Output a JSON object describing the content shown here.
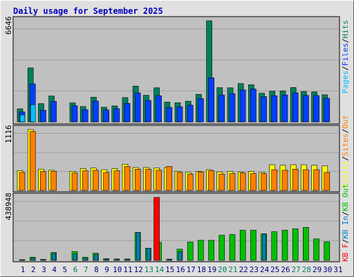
{
  "title": "Daily usage for September 2025",
  "colors": {
    "hits": "#00805c",
    "files": "#0040ff",
    "pages": "#00c0ff",
    "visits": "#ffff00",
    "sites": "#ff8000",
    "kb_out": "#00c000",
    "kb_in": "#0080c0",
    "kb_f": "#ff0000",
    "weekend_label": "#00805c",
    "weekday_label": "#000080",
    "panel_bg": "#c0c0c0",
    "frame_bg": "#e0e0e0",
    "title": "#0000c0"
  },
  "chart_data": [
    {
      "type": "bar",
      "panel": "top",
      "y_tick_label": "6646",
      "ylim": [
        0,
        6646
      ],
      "legend": [
        "Pages",
        "Files",
        "Hits"
      ],
      "categories": [
        "1",
        "2",
        "3",
        "4",
        "5",
        "6",
        "7",
        "8",
        "9",
        "10",
        "11",
        "12",
        "13",
        "14",
        "15",
        "16",
        "17",
        "18",
        "19",
        "20",
        "21",
        "22",
        "23",
        "24",
        "25",
        "26",
        "27",
        "28",
        "29",
        "30",
        "31"
      ],
      "weekend_days": [
        "6",
        "7",
        "13",
        "14",
        "20",
        "21",
        "27",
        "28"
      ],
      "series": [
        {
          "name": "Hits",
          "values": [
            860,
            3550,
            1200,
            1700,
            0,
            1250,
            1010,
            1620,
            960,
            1050,
            1600,
            2350,
            1750,
            2240,
            1300,
            1260,
            1360,
            1810,
            6646,
            2250,
            2240,
            2520,
            2440,
            1880,
            2020,
            2040,
            2260,
            2000,
            1970,
            1780,
            0
          ]
        },
        {
          "name": "Files",
          "values": [
            650,
            2500,
            760,
            1350,
            0,
            1060,
            800,
            1370,
            780,
            870,
            1220,
            1910,
            1410,
            1720,
            950,
            1000,
            1100,
            1530,
            2900,
            1770,
            1860,
            2100,
            2160,
            1660,
            1720,
            1770,
            1910,
            1740,
            1730,
            1550,
            0
          ]
        },
        {
          "name": "Pages",
          "values": [
            460,
            1130,
            0,
            0,
            0,
            0,
            0,
            0,
            0,
            0,
            0,
            0,
            0,
            0,
            0,
            0,
            0,
            0,
            0,
            0,
            0,
            0,
            0,
            0,
            0,
            0,
            0,
            0,
            0,
            0,
            0
          ]
        }
      ]
    },
    {
      "type": "bar",
      "panel": "middle",
      "y_tick_label": "1116",
      "ylim": [
        0,
        1116
      ],
      "legend": [
        "Visits",
        "Sites",
        "Out"
      ],
      "categories": [
        "1",
        "2",
        "3",
        "4",
        "5",
        "6",
        "7",
        "8",
        "9",
        "10",
        "11",
        "12",
        "13",
        "14",
        "15",
        "16",
        "17",
        "18",
        "19",
        "20",
        "21",
        "22",
        "23",
        "24",
        "25",
        "26",
        "27",
        "28",
        "29",
        "30",
        "31"
      ],
      "series": [
        {
          "name": "Visits",
          "values": [
            360,
            1116,
            390,
            370,
            0,
            350,
            400,
            410,
            380,
            400,
            480,
            420,
            420,
            410,
            420,
            350,
            330,
            350,
            380,
            340,
            350,
            340,
            350,
            330,
            470,
            460,
            470,
            470,
            460,
            450,
            0
          ]
        },
        {
          "name": "Sites",
          "values": [
            330,
            1080,
            350,
            350,
            0,
            320,
            360,
            370,
            330,
            360,
            440,
            390,
            390,
            370,
            440,
            330,
            300,
            340,
            360,
            300,
            310,
            320,
            310,
            310,
            380,
            370,
            390,
            380,
            380,
            330,
            0
          ]
        }
      ]
    },
    {
      "type": "bar",
      "panel": "bottom",
      "y_tick_label": "438948",
      "ylim": [
        0,
        438948
      ],
      "legend": [
        "KB F",
        "KB In",
        "KB Out"
      ],
      "categories": [
        "1",
        "2",
        "3",
        "4",
        "5",
        "6",
        "7",
        "8",
        "9",
        "10",
        "11",
        "12",
        "13",
        "14",
        "15",
        "16",
        "17",
        "18",
        "19",
        "20",
        "21",
        "22",
        "23",
        "24",
        "25",
        "26",
        "27",
        "28",
        "29",
        "30",
        "31"
      ],
      "series": [
        {
          "name": "KB F",
          "values": [
            0,
            0,
            0,
            0,
            0,
            0,
            0,
            0,
            0,
            0,
            0,
            0,
            0,
            438948,
            0,
            0,
            0,
            0,
            0,
            0,
            0,
            0,
            0,
            0,
            0,
            0,
            0,
            0,
            0,
            0,
            0
          ]
        },
        {
          "name": "KB Out",
          "values": [
            5000,
            22000,
            7000,
            55000,
            0,
            62000,
            22000,
            50000,
            12000,
            10000,
            10000,
            195000,
            85000,
            125000,
            9000,
            78000,
            128000,
            140000,
            140000,
            175000,
            180000,
            210000,
            210000,
            185000,
            200000,
            210000,
            220000,
            230000,
            150000,
            130000,
            0
          ]
        },
        {
          "name": "KB In",
          "values": [
            3000,
            15000,
            5000,
            48000,
            0,
            45000,
            15000,
            40000,
            8000,
            6000,
            6000,
            195000,
            85000,
            0,
            7000,
            60000,
            0,
            0,
            0,
            0,
            0,
            0,
            0,
            180000,
            0,
            0,
            0,
            0,
            0,
            0,
            0
          ]
        }
      ]
    }
  ]
}
